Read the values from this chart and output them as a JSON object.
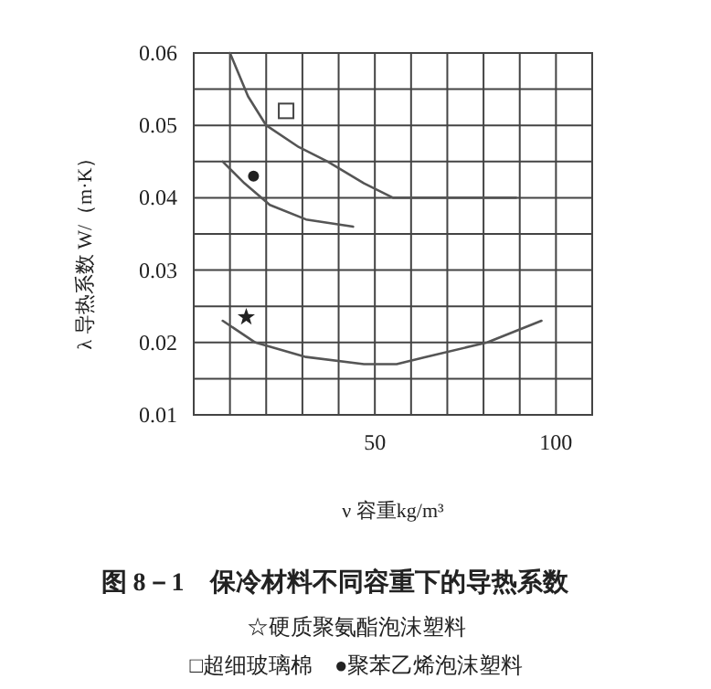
{
  "chart_data": {
    "type": "line",
    "title": "图 8－1　保冷材料不同容重下的导热系数",
    "xlabel": "ν  容重kg/m³",
    "ylabel": "λ 导热系数 W/（m·K）",
    "xlim": [
      0,
      110
    ],
    "ylim": [
      0.01,
      0.06
    ],
    "xticks": [
      {
        "value": 0,
        "label": null
      },
      {
        "value": 10,
        "label": null
      },
      {
        "value": 20,
        "label": null
      },
      {
        "value": 30,
        "label": null
      },
      {
        "value": 40,
        "label": null
      },
      50,
      {
        "value": 60,
        "label": null
      },
      {
        "value": 70,
        "label": null
      },
      {
        "value": 80,
        "label": null
      },
      {
        "value": 90,
        "label": null
      },
      100,
      {
        "value": 110,
        "label": null
      }
    ],
    "yticks": [
      0.01,
      {
        "value": 0.015,
        "label": null
      },
      0.02,
      {
        "value": 0.025,
        "label": null
      },
      0.03,
      {
        "value": 0.035,
        "label": null
      },
      0.04,
      {
        "value": 0.045,
        "label": null
      },
      0.05,
      {
        "value": 0.055,
        "label": null
      },
      0.06
    ],
    "grid": true,
    "line_style": "solid",
    "series": [
      {
        "color": "#555555",
        "x": [
          10,
          15,
          20,
          29,
          37,
          47,
          55,
          67,
          89
        ],
        "values": [
          0.06,
          0.054,
          0.05,
          0.047,
          0.045,
          0.042,
          0.04,
          0.04,
          0.04
        ]
      },
      {
        "color": "#555555",
        "x": [
          8,
          14,
          21,
          31,
          44
        ],
        "values": [
          0.045,
          0.042,
          0.039,
          0.037,
          0.036
        ]
      },
      {
        "color": "#555555",
        "x": [
          8,
          17,
          31,
          47,
          56,
          64,
          81,
          96
        ],
        "values": [
          0.023,
          0.02,
          0.018,
          0.017,
          0.017,
          0.018,
          0.02,
          0.023
        ]
      },
      {
        "type": "scatter",
        "marker": "square",
        "color": "#444444",
        "x": [
          25.5
        ],
        "values": [
          0.052
        ]
      },
      {
        "type": "scatter",
        "marker": "circle",
        "color": "#222222",
        "x": [
          16.5
        ],
        "values": [
          0.043
        ]
      },
      {
        "type": "scatter",
        "marker": "star",
        "color": "#222222",
        "x": [
          14.5
        ],
        "values": [
          0.0235
        ]
      }
    ],
    "annotations": [
      "☆硬质聚氨酯泡沫塑料",
      "□超细玻璃棉　●聚苯乙烯泡沫塑料"
    ]
  }
}
